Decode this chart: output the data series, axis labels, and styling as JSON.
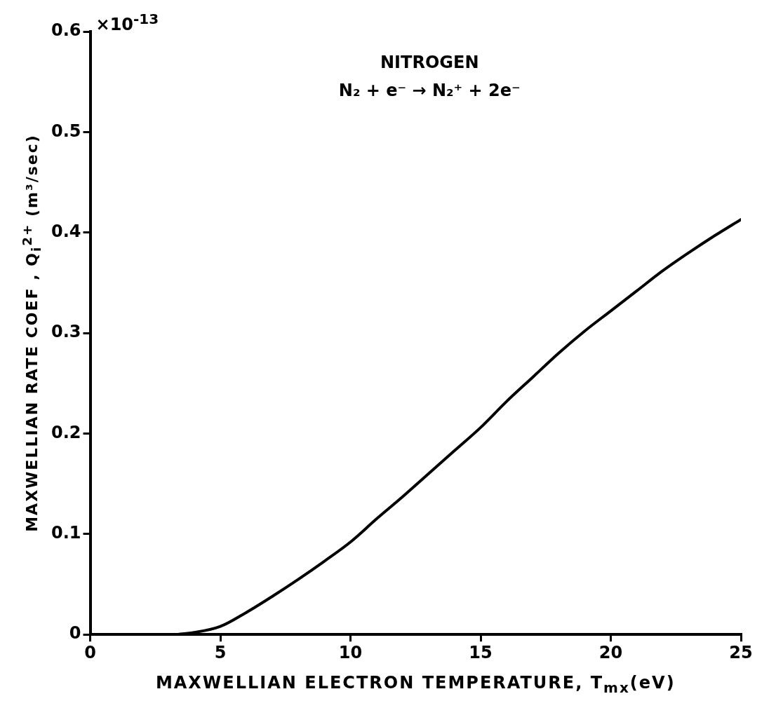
{
  "chart_data": {
    "type": "line",
    "title": "NITROGEN",
    "subtitle": "N₂ + e⁻ → N₂⁺ + 2e⁻",
    "xlabel": "MAXWELLIAN ELECTRON TEMPERATURE, T$_{mx}$(eV)",
    "ylabel": "MAXWELLIAN RATE COEF , Q$_{i}$$^{2+}$ (m³/sec)",
    "annotations": [
      "×10$^{-13}$"
    ],
    "x": [
      3.3,
      4,
      5,
      6,
      7,
      8,
      9,
      10,
      11,
      12,
      13,
      14,
      15,
      16,
      17,
      18,
      19,
      20,
      21,
      22,
      23,
      24,
      25
    ],
    "series": [
      {
        "color": "#000000",
        "values": [
          0,
          0.002,
          0.008,
          0.022,
          0.038,
          0.055,
          0.073,
          0.092,
          0.115,
          0.137,
          0.16,
          0.183,
          0.206,
          0.232,
          0.256,
          0.28,
          0.302,
          0.322,
          0.342,
          0.362,
          0.38,
          0.397,
          0.413
        ]
      }
    ],
    "xlim": [
      0,
      25
    ],
    "xticks": [
      0,
      5,
      10,
      15,
      20,
      25
    ],
    "ylim": [
      0,
      0.6
    ],
    "yticks": [
      0,
      0.1,
      0.2,
      0.3,
      0.4,
      0.5,
      0.6
    ],
    "marker": "none",
    "line_style": "solid"
  }
}
